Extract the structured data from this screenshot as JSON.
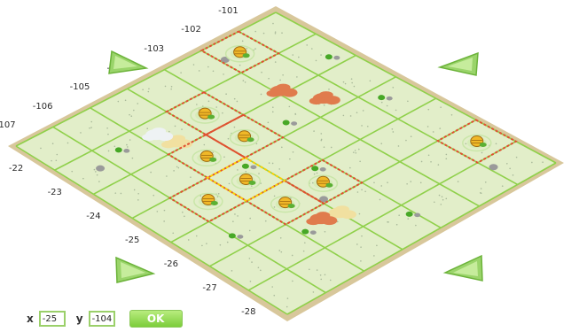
{
  "board": {
    "colors": {
      "tile_fill": "#e2eec9",
      "border": "#d8c79b",
      "grid_line": "#8fd04a",
      "highlight": "#e05030",
      "yellow_highlight": "#ffd000",
      "bush": "#47a826",
      "rock": "#9a9a9a"
    }
  },
  "row_labels": [
    "-101",
    "-102",
    "-103",
    "-104",
    "-105",
    "-106",
    "-107"
  ],
  "col_labels": [
    "-28",
    "-27",
    "-26",
    "-25",
    "-24",
    "-23",
    "-22"
  ],
  "highlighted_tiles": [
    {
      "row": "-102",
      "col": "-22",
      "icon": "beehive-icon"
    },
    {
      "row": "-104",
      "col": "-23",
      "icon": "beehive-icon"
    },
    {
      "row": "-104",
      "col": "-24",
      "icon": "beehive-icon"
    },
    {
      "row": "-105",
      "col": "-24",
      "icon": "beehive-icon"
    },
    {
      "row": "-106",
      "col": "-25",
      "icon": "beehive-icon"
    },
    {
      "row": "-105",
      "col": "-26",
      "icon": "beehive-icon"
    },
    {
      "row": "-104",
      "col": "-26",
      "icon": "beehive-icon"
    },
    {
      "row": "-101",
      "col": "-27",
      "icon": "beehive-icon"
    }
  ],
  "yellow_tile": {
    "row": "-105",
    "col": "-25"
  },
  "controls": {
    "x_label": "x",
    "y_label": "y",
    "x_value": "-25",
    "y_value": "-104",
    "ok_label": "OK"
  },
  "nav": {
    "up_left": "arrow-up-left-icon",
    "up_right": "arrow-up-right-icon",
    "down_left": "arrow-down-left-icon",
    "down_right": "arrow-down-right-icon"
  }
}
